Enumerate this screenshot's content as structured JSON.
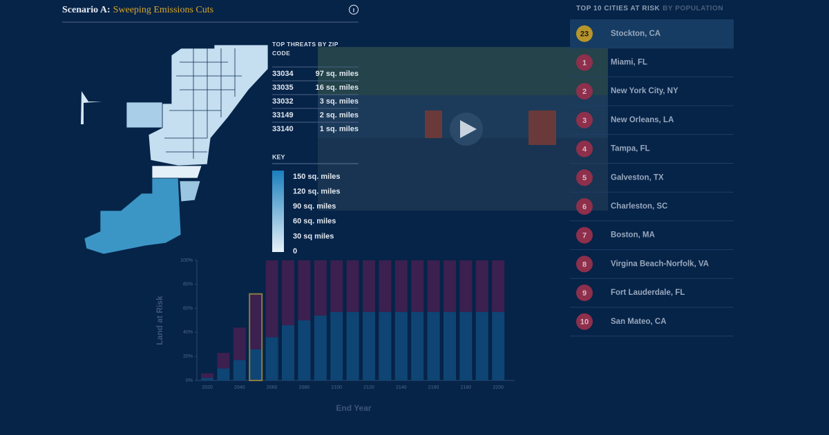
{
  "header": {
    "scenario": "Scenario A:",
    "title": "Sweeping Emissions Cuts"
  },
  "threats": {
    "title": "TOP THREATS BY ZIP CODE",
    "rows": [
      [
        "33034",
        "97 sq. miles"
      ],
      [
        "33035",
        "16 sq. miles"
      ],
      [
        "33032",
        "3 sq. miles"
      ],
      [
        "33149",
        "2 sq. miles"
      ],
      [
        "33140",
        "1 sq. miles"
      ]
    ]
  },
  "key": {
    "title": "KEY",
    "labels": [
      "150 sq. miles",
      "120 sq. miles",
      "90 sq. miles",
      "60 sq. miles",
      "30 sq miles",
      "0"
    ]
  },
  "cities": {
    "title": "TOP 10 CITIES AT RISK",
    "title_suffix": "BY POPULATION",
    "rows": [
      {
        "rank": 23,
        "name": "Stockton, CA",
        "selected": true
      },
      {
        "rank": 1,
        "name": "Miami, FL"
      },
      {
        "rank": 2,
        "name": "New York City, NY"
      },
      {
        "rank": 3,
        "name": "New Orleans, LA"
      },
      {
        "rank": 4,
        "name": "Tampa, FL"
      },
      {
        "rank": 5,
        "name": "Galveston, TX"
      },
      {
        "rank": 6,
        "name": "Charleston, SC"
      },
      {
        "rank": 7,
        "name": "Boston, MA"
      },
      {
        "rank": 8,
        "name": "Virgina Beach-Norfolk, VA"
      },
      {
        "rank": 9,
        "name": "Fort Lauderdale, FL"
      },
      {
        "rank": 10,
        "name": "San Mateo, CA"
      }
    ]
  },
  "chart_data": {
    "type": "bar",
    "stacked": true,
    "y_label": "Land at Risk",
    "x_label": "End Year",
    "categories": [
      "2020",
      null,
      "2040",
      null,
      "2060",
      null,
      "2080",
      null,
      "2100",
      null,
      "2120",
      null,
      "2140",
      null,
      "2160",
      null,
      "2180",
      null,
      "2200"
    ],
    "series": [
      {
        "color": "#0e4574",
        "values": [
          2,
          10,
          17,
          26,
          36,
          46,
          50,
          54,
          57,
          57,
          57,
          57,
          57,
          57,
          57,
          57,
          57,
          57,
          57
        ]
      },
      {
        "color": "#3b2050",
        "values": [
          4,
          13,
          27,
          46,
          64,
          54,
          50,
          46,
          43,
          43,
          43,
          43,
          43,
          43,
          43,
          43,
          43,
          43,
          43
        ]
      }
    ],
    "ylim": [
      0,
      100
    ],
    "yticks": [
      {
        "value": 0,
        "label": "0%"
      },
      {
        "value": 20,
        "label": "20%"
      },
      {
        "value": 40,
        "label": "40%"
      },
      {
        "value": 60,
        "label": "60%"
      },
      {
        "value": 80,
        "label": "80%"
      },
      {
        "value": 100,
        "label": "100%"
      }
    ],
    "highlight_index": 3,
    "highlight_color": "#8c7d3e"
  }
}
